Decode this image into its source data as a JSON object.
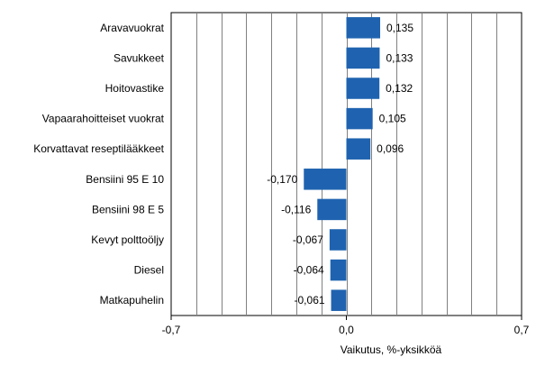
{
  "chart_data": {
    "type": "bar",
    "orientation": "horizontal",
    "categories": [
      "Aravavuokrat",
      "Savukkeet",
      "Hoitovastike",
      "Vapaarahoitteiset vuokrat",
      "Korvattavat reseptilääkkeet",
      "Bensiini 95 E 10",
      "Bensiini 98 E 5",
      "Kevyt polttoöljy",
      "Diesel",
      "Matkapuhelin"
    ],
    "values": [
      0.135,
      0.133,
      0.132,
      0.105,
      0.096,
      -0.17,
      -0.116,
      -0.067,
      -0.064,
      -0.061
    ],
    "value_labels": [
      "0,135",
      "0,133",
      "0,132",
      "0,105",
      "0,096",
      "-0,170",
      "-0,116",
      "-0,067",
      "-0,064",
      "-0,061"
    ],
    "xlabel": "Vaikutus, %-yksikköä",
    "xlim": [
      -0.7,
      0.7
    ],
    "x_ticks": [
      -0.7,
      0.0,
      0.7
    ],
    "x_tick_labels": [
      "-0,7",
      "0,0",
      "0,7"
    ],
    "x_grid_step": 0.1,
    "grid": "vertical",
    "bar_color": "#1f63b0"
  }
}
